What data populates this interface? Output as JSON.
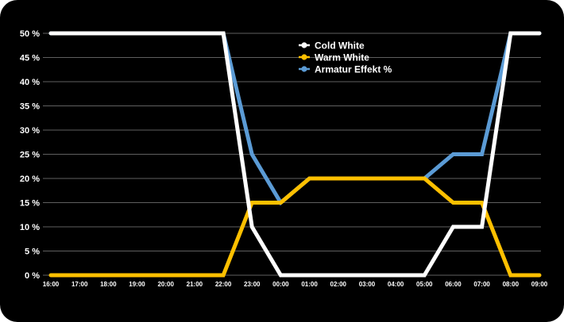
{
  "chart_data": {
    "type": "line",
    "title": "",
    "xlabel": "",
    "ylabel": "",
    "x": [
      "16:00",
      "17:00",
      "18:00",
      "19:00",
      "20:00",
      "21:00",
      "22:00",
      "23:00",
      "00:00",
      "01:00",
      "02:00",
      "03:00",
      "04:00",
      "05:00",
      "06:00",
      "07:00",
      "08:00",
      "09:00"
    ],
    "y_ticks": [
      "0 %",
      "5 %",
      "10 %",
      "15 %",
      "20 %",
      "25 %",
      "30 %",
      "35 %",
      "40 %",
      "45 %",
      "50 %"
    ],
    "ylim": [
      0,
      50
    ],
    "grid": true,
    "legend_position": "top-center",
    "series": [
      {
        "name": "Armatur Effekt %",
        "color": "#5b9bd5",
        "values": [
          50,
          50,
          50,
          50,
          50,
          50,
          50,
          25,
          15,
          20,
          20,
          20,
          20,
          20,
          25,
          25,
          50,
          50
        ]
      },
      {
        "name": "Warm White",
        "color": "#ffc000",
        "values": [
          0,
          0,
          0,
          0,
          0,
          0,
          0,
          15,
          15,
          20,
          20,
          20,
          20,
          20,
          15,
          15,
          0,
          0
        ]
      },
      {
        "name": "Cold White",
        "color": "#ffffff",
        "values": [
          50,
          50,
          50,
          50,
          50,
          50,
          50,
          10,
          0,
          0,
          0,
          0,
          0,
          0,
          10,
          10,
          50,
          50
        ]
      }
    ],
    "legend_order": [
      "Cold White",
      "Warm White",
      "Armatur Effekt %"
    ]
  }
}
